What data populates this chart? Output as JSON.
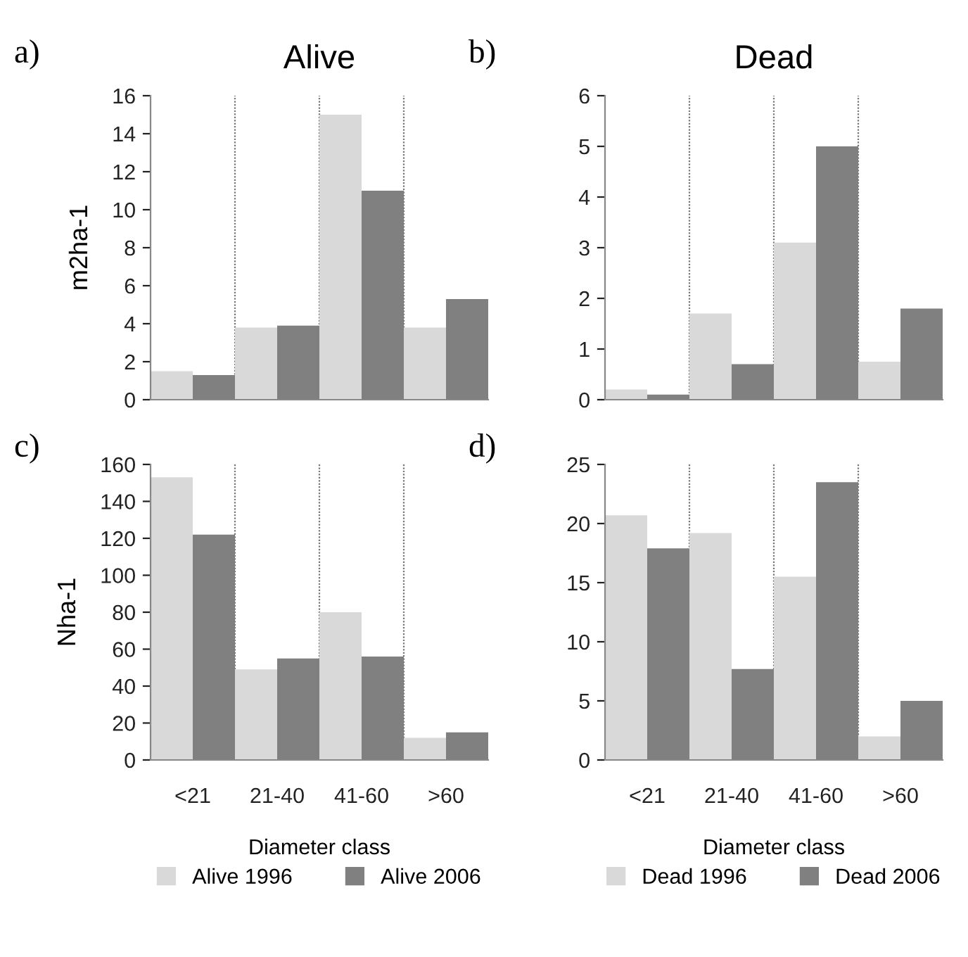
{
  "chart_data": [
    {
      "type": "bar",
      "title": "Alive",
      "ylabel": "m2ha-1",
      "annotations": [
        "a)"
      ],
      "categories": [
        null,
        null,
        null,
        null
      ],
      "grid": "x",
      "ylim": [
        0,
        16
      ],
      "yticks": [
        0,
        2,
        4,
        6,
        8,
        10,
        12,
        14,
        16
      ],
      "series": [
        {
          "color": "#d9d9d9",
          "values": [
            1.5,
            3.8,
            15.0,
            3.8
          ]
        },
        {
          "color": "#808080",
          "values": [
            1.3,
            3.9,
            11.0,
            5.3
          ]
        }
      ]
    },
    {
      "type": "bar",
      "title": "Dead",
      "annotations": [
        "b)"
      ],
      "categories": [
        null,
        null,
        null,
        null
      ],
      "grid": "x",
      "ylim": [
        0,
        6
      ],
      "yticks": [
        0,
        1,
        2,
        3,
        4,
        5,
        6
      ],
      "series": [
        {
          "color": "#d9d9d9",
          "values": [
            0.2,
            1.7,
            3.1,
            0.75
          ]
        },
        {
          "color": "#808080",
          "values": [
            0.1,
            0.7,
            5.0,
            1.8
          ]
        }
      ]
    },
    {
      "type": "bar",
      "ylabel": "Nha-1",
      "xlabel": "Diameter class",
      "annotations": [
        "c)"
      ],
      "categories": [
        "<21",
        "21-40",
        "41-60",
        ">60"
      ],
      "grid": "x",
      "legend": "bottom",
      "ylim": [
        0,
        160
      ],
      "yticks": [
        0,
        20,
        40,
        60,
        80,
        100,
        120,
        140,
        160
      ],
      "series": [
        {
          "name": "Alive 1996",
          "color": "#d9d9d9",
          "values": [
            153,
            49,
            80,
            12
          ]
        },
        {
          "name": "Alive 2006",
          "color": "#808080",
          "values": [
            122,
            55,
            56,
            15
          ]
        }
      ]
    },
    {
      "type": "bar",
      "xlabel": "Diameter class",
      "annotations": [
        "d)"
      ],
      "categories": [
        "<21",
        "21-40",
        "41-60",
        ">60"
      ],
      "grid": "x",
      "legend": "bottom",
      "ylim": [
        0,
        25
      ],
      "yticks": [
        0,
        5,
        10,
        15,
        20,
        25
      ],
      "series": [
        {
          "name": "Dead 1996",
          "color": "#d9d9d9",
          "values": [
            20.7,
            19.2,
            15.5,
            2
          ]
        },
        {
          "name": "Dead 2006",
          "color": "#808080",
          "values": [
            17.9,
            7.7,
            23.5,
            5.0
          ]
        }
      ]
    }
  ]
}
